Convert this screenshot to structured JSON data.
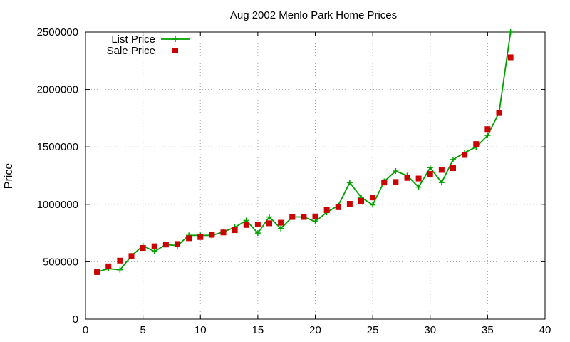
{
  "chart_data": {
    "type": "line",
    "title": "Aug 2002 Menlo Park Home Prices",
    "xlabel": "",
    "ylabel": "Price",
    "xlim": [
      0,
      40
    ],
    "ylim": [
      0,
      2500000
    ],
    "x_ticks": [
      0,
      5,
      10,
      15,
      20,
      25,
      30,
      35,
      40
    ],
    "y_ticks": [
      0,
      500000,
      1000000,
      1500000,
      2000000,
      2500000
    ],
    "grid": true,
    "legend_position": "top-left",
    "colors": {
      "list": "#00a000",
      "sale": "#cc0000"
    },
    "series": [
      {
        "name": "List Price",
        "style": "line-plus",
        "points": [
          [
            1,
            410000
          ],
          [
            2,
            440000
          ],
          [
            3,
            430000
          ],
          [
            4,
            550000
          ],
          [
            5,
            640000
          ],
          [
            6,
            590000
          ],
          [
            7,
            650000
          ],
          [
            8,
            640000
          ],
          [
            9,
            730000
          ],
          [
            10,
            730000
          ],
          [
            11,
            730000
          ],
          [
            12,
            760000
          ],
          [
            13,
            800000
          ],
          [
            14,
            860000
          ],
          [
            15,
            750000
          ],
          [
            16,
            890000
          ],
          [
            17,
            790000
          ],
          [
            18,
            890000
          ],
          [
            19,
            890000
          ],
          [
            20,
            850000
          ],
          [
            21,
            930000
          ],
          [
            22,
            990000
          ],
          [
            23,
            1190000
          ],
          [
            24,
            1060000
          ],
          [
            25,
            995000
          ],
          [
            26,
            1200000
          ],
          [
            27,
            1290000
          ],
          [
            28,
            1250000
          ],
          [
            29,
            1150000
          ],
          [
            30,
            1320000
          ],
          [
            31,
            1190000
          ],
          [
            32,
            1390000
          ],
          [
            33,
            1450000
          ],
          [
            34,
            1500000
          ],
          [
            35,
            1600000
          ],
          [
            36,
            1800000
          ],
          [
            37,
            2500000
          ]
        ]
      },
      {
        "name": "Sale Price",
        "style": "square-points",
        "points": [
          [
            1,
            410000
          ],
          [
            2,
            460000
          ],
          [
            3,
            510000
          ],
          [
            4,
            550000
          ],
          [
            5,
            620000
          ],
          [
            6,
            635000
          ],
          [
            7,
            650000
          ],
          [
            8,
            655000
          ],
          [
            9,
            705000
          ],
          [
            10,
            715000
          ],
          [
            11,
            735000
          ],
          [
            12,
            755000
          ],
          [
            13,
            775000
          ],
          [
            14,
            820000
          ],
          [
            15,
            825000
          ],
          [
            16,
            835000
          ],
          [
            17,
            840000
          ],
          [
            18,
            890000
          ],
          [
            19,
            890000
          ],
          [
            20,
            895000
          ],
          [
            21,
            950000
          ],
          [
            22,
            975000
          ],
          [
            23,
            1005000
          ],
          [
            24,
            1030000
          ],
          [
            25,
            1060000
          ],
          [
            26,
            1190000
          ],
          [
            27,
            1195000
          ],
          [
            28,
            1230000
          ],
          [
            29,
            1225000
          ],
          [
            30,
            1265000
          ],
          [
            31,
            1300000
          ],
          [
            32,
            1315000
          ],
          [
            33,
            1430000
          ],
          [
            34,
            1525000
          ],
          [
            35,
            1655000
          ],
          [
            36,
            1795000
          ],
          [
            37,
            2280000
          ]
        ]
      }
    ]
  }
}
